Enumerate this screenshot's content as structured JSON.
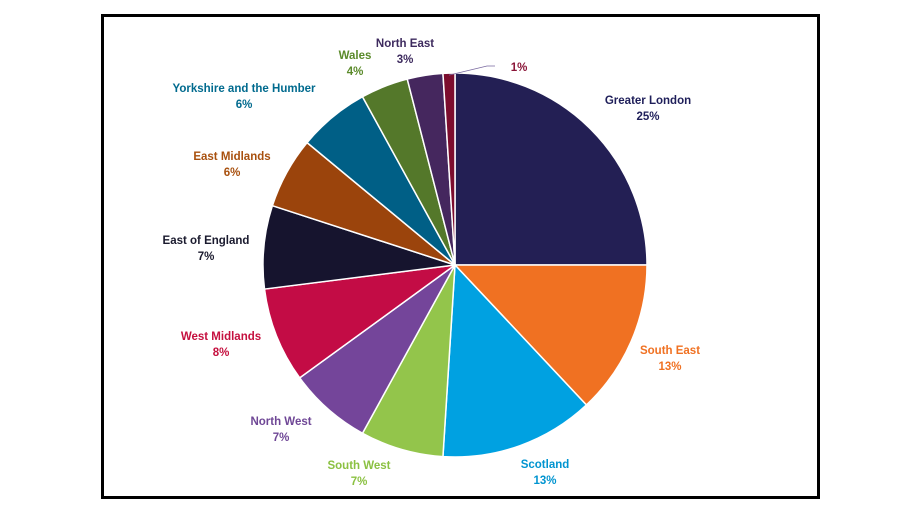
{
  "chart_data": {
    "type": "pie",
    "title": "",
    "start_angle_deg": 0,
    "direction": "clockwise",
    "legend": "none",
    "slices": [
      {
        "label": "Greater London",
        "value": 25,
        "value_label": "25%",
        "color": "#231f54",
        "label_color": "#1f1f5a"
      },
      {
        "label": "South East",
        "value": 13,
        "value_label": "13%",
        "color": "#f07122",
        "label_color": "#f07122"
      },
      {
        "label": "Scotland",
        "value": 13,
        "value_label": "13%",
        "color": "#00a1e1",
        "label_color": "#0094d0"
      },
      {
        "label": "South West",
        "value": 7,
        "value_label": "7%",
        "color": "#93c54b",
        "label_color": "#8bc142"
      },
      {
        "label": "North West",
        "value": 7,
        "value_label": "7%",
        "color": "#74459a",
        "label_color": "#6f4796"
      },
      {
        "label": "West Midlands",
        "value": 8,
        "value_label": "8%",
        "color": "#c30c45",
        "label_color": "#c5103f"
      },
      {
        "label": "East of England",
        "value": 7,
        "value_label": "7%",
        "color": "#16142e",
        "label_color": "#1a1a2e"
      },
      {
        "label": "East Midlands",
        "value": 6,
        "value_label": "6%",
        "color": "#9b440c",
        "label_color": "#a8500e"
      },
      {
        "label": "Yorkshire and the Humber",
        "value": 6,
        "value_label": "6%",
        "color": "#005f86",
        "label_color": "#006a8e"
      },
      {
        "label": "Wales",
        "value": 4,
        "value_label": "4%",
        "color": "#54782a",
        "label_color": "#5a8a2a"
      },
      {
        "label": "North East",
        "value": 3,
        "value_label": "3%",
        "color": "#45275e",
        "label_color": "#3d2a5e"
      },
      {
        "label": "",
        "value": 1,
        "value_label": "1%",
        "color": "#7c0d2e",
        "label_color": "#8a1538"
      }
    ]
  }
}
